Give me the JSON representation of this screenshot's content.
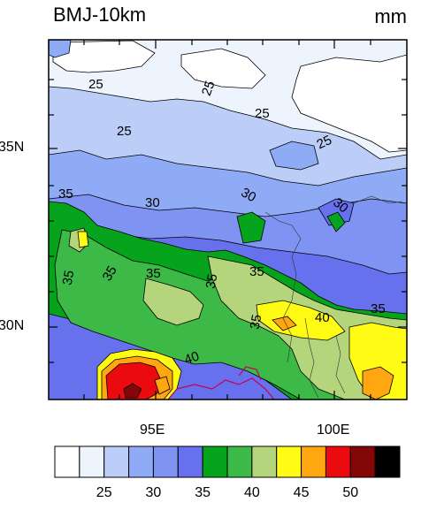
{
  "title": "BMJ-10km",
  "units": "mm",
  "axes": {
    "x_ticks": [
      {
        "label": "95E",
        "lon": 95
      },
      {
        "label": "100E",
        "lon": 100
      }
    ],
    "y_ticks": [
      {
        "label": "35N",
        "lat": 35
      },
      {
        "label": "30N",
        "lat": 30
      }
    ],
    "lon_range": [
      92,
      102
    ],
    "lat_range": [
      28,
      38
    ]
  },
  "contour_labels": [
    "25",
    "25",
    "25",
    "25",
    "25",
    "30",
    "30",
    "30",
    "35",
    "35",
    "35",
    "35",
    "35",
    "35",
    "35",
    "40",
    "40",
    "35"
  ],
  "colorbar": {
    "colors": [
      "#ffffff",
      "#eef4fd",
      "#bccdf8",
      "#8fabf5",
      "#7e93f2",
      "#6771ee",
      "#06a41c",
      "#3db948",
      "#b4d57b",
      "#fffb14",
      "#ffa611",
      "#eb0a10",
      "#830706",
      "#000000"
    ],
    "labels": [
      "25",
      "30",
      "35",
      "40",
      "45",
      "50"
    ]
  },
  "colors": {
    "white": "#ffffff",
    "pale": "#eef4fd",
    "light_blue": "#bccdf8",
    "mid_blue": "#8fabf5",
    "blue": "#7e93f2",
    "dark_blue": "#6771ee",
    "green": "#06a41c",
    "mid_green": "#3db948",
    "light_green": "#b4d57b",
    "yellow": "#fffb14",
    "orange": "#ffa611",
    "red": "#eb0a10",
    "dark_red": "#830706",
    "border": "#c4005a"
  }
}
